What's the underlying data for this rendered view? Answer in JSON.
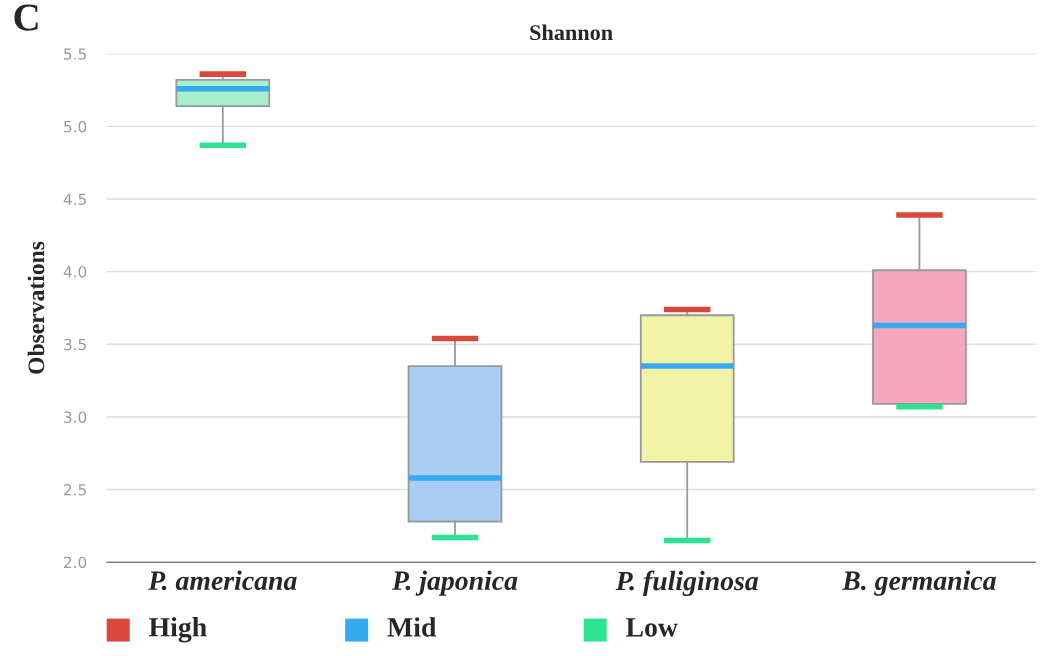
{
  "chart_data": {
    "type": "box",
    "title": "Shannon",
    "ylabel": "Observations",
    "annotations": [
      "C",
      "High",
      "Mid",
      "Low"
    ],
    "categories": [
      "P. americana",
      "P. japonica",
      "P. fuliginosa",
      "B. germanica"
    ],
    "colors": [
      "#a8efcf",
      "#aacdf3",
      "#f3f3a8",
      "#f3a8c0"
    ],
    "boxes": [
      {
        "low": 4.87,
        "q1": 5.14,
        "median": 5.26,
        "q3": 5.32,
        "high": 5.36
      },
      {
        "low": 2.17,
        "q1": 2.28,
        "median": 2.58,
        "q3": 3.35,
        "high": 3.54
      },
      {
        "low": 2.15,
        "q1": 2.69,
        "median": 3.35,
        "q3": 3.7,
        "high": 3.74
      },
      {
        "low": 3.07,
        "q1": 3.09,
        "median": 3.63,
        "q3": 4.01,
        "high": 4.39
      }
    ],
    "ylim": [
      2.0,
      5.5
    ],
    "yticks": [
      {
        "value": 2.0,
        "label": "2.0"
      },
      {
        "value": 2.5,
        "label": "2.5"
      },
      {
        "value": 3.0,
        "label": "3.0"
      },
      {
        "value": 3.5,
        "label": "3.5"
      },
      {
        "value": 4.0,
        "label": "4.0"
      },
      {
        "value": 4.5,
        "label": "4.5"
      },
      {
        "value": 5.0,
        "label": "5.0"
      },
      {
        "value": 5.5,
        "label": "5.5"
      }
    ],
    "grid": "y"
  }
}
